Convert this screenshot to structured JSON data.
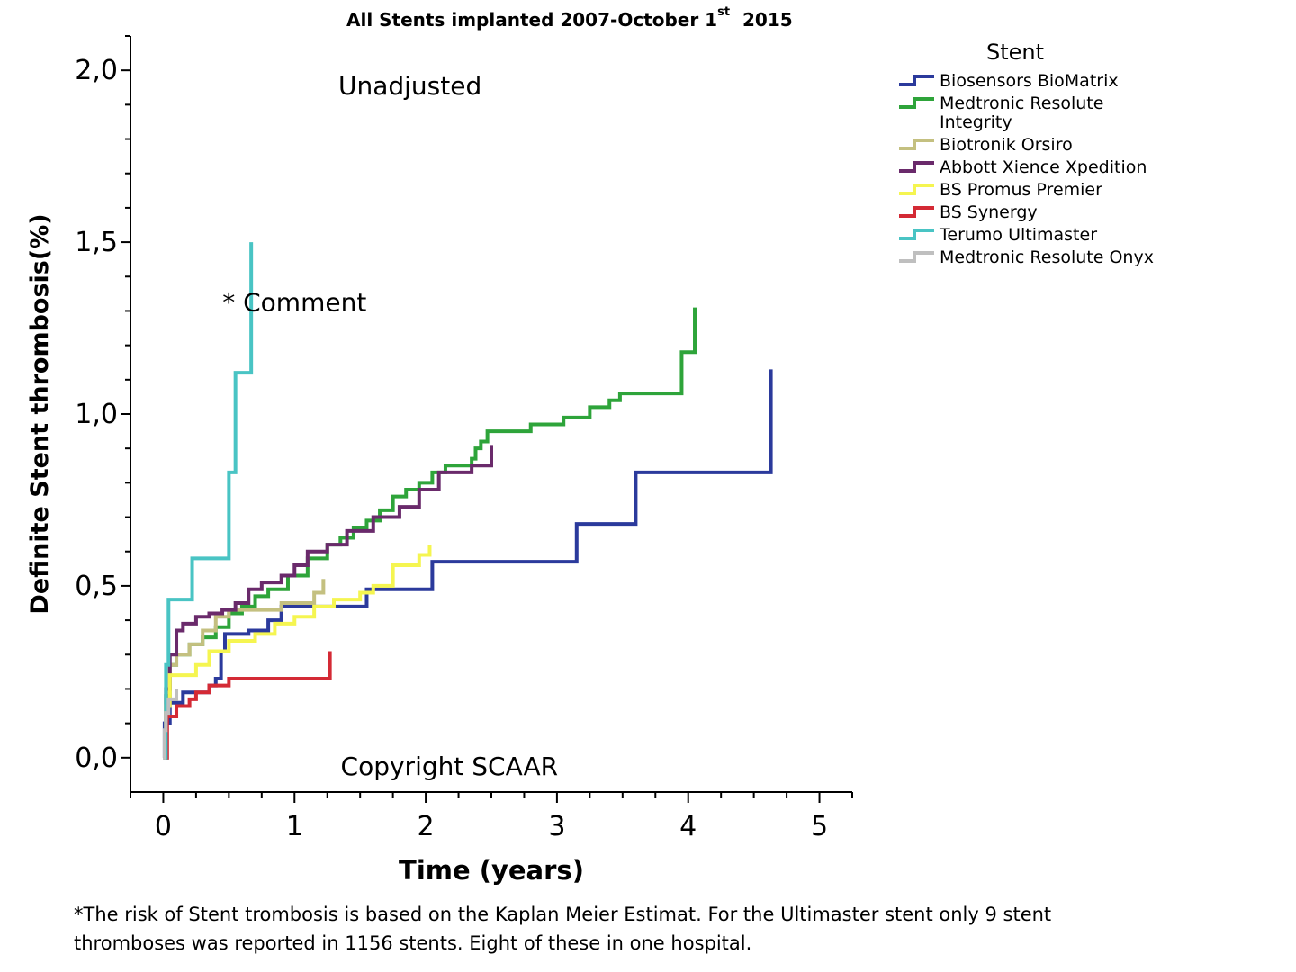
{
  "page": {
    "title_main": "All Stents implanted 2007-October 1",
    "title_sup": "st",
    "title_tail": "2015",
    "footnote_line1": "*The risk of Stent trombosis is based on the Kaplan Meier Estimat. For the Ultimaster stent only 9 stent",
    "footnote_line2": "thromboses was reported in 1156 stents. Eight of these in one hospital."
  },
  "chart_data": {
    "type": "line",
    "step": true,
    "xlabel": "Time (years)",
    "ylabel": "Definite Stent thrombosis(%)",
    "xlim": [
      -0.25,
      5.25
    ],
    "ylim": [
      -0.1,
      2.1
    ],
    "xticks": [
      0,
      1,
      2,
      3,
      4,
      5
    ],
    "yticks": [
      0.0,
      0.5,
      1.0,
      1.5,
      2.0
    ],
    "ytick_labels": [
      "0,0",
      "0,5",
      "1,0",
      "1,5",
      "2,0"
    ],
    "annotations": [
      {
        "text": "Unadjusted",
        "x": 1.88,
        "y": 1.93
      },
      {
        "text": "* Comment",
        "x": 1.0,
        "y": 1.3
      },
      {
        "text": "Copyright SCAAR",
        "x": 2.18,
        "y": -0.05
      }
    ],
    "legend_title": "Stent",
    "legend_position": "right",
    "series": [
      {
        "name": "Biosensors BioMatrix",
        "color": "#2b3a9c",
        "points": [
          [
            0,
            0
          ],
          [
            0.01,
            0.1
          ],
          [
            0.05,
            0.16
          ],
          [
            0.15,
            0.19
          ],
          [
            0.35,
            0.21
          ],
          [
            0.4,
            0.23
          ],
          [
            0.44,
            0.31
          ],
          [
            0.47,
            0.36
          ],
          [
            0.65,
            0.37
          ],
          [
            0.8,
            0.4
          ],
          [
            0.9,
            0.44
          ],
          [
            1.0,
            0.44
          ],
          [
            1.55,
            0.49
          ],
          [
            2.05,
            0.57
          ],
          [
            3.15,
            0.68
          ],
          [
            3.6,
            0.83
          ],
          [
            4.63,
            1.13
          ]
        ]
      },
      {
        "name": "Medtronic Resolute Integrity",
        "color": "#2ea43a",
        "points": [
          [
            0,
            0
          ],
          [
            0.02,
            0.18
          ],
          [
            0.05,
            0.27
          ],
          [
            0.1,
            0.3
          ],
          [
            0.2,
            0.33
          ],
          [
            0.3,
            0.35
          ],
          [
            0.4,
            0.38
          ],
          [
            0.5,
            0.42
          ],
          [
            0.6,
            0.44
          ],
          [
            0.7,
            0.47
          ],
          [
            0.8,
            0.49
          ],
          [
            0.95,
            0.53
          ],
          [
            1.1,
            0.58
          ],
          [
            1.25,
            0.62
          ],
          [
            1.35,
            0.64
          ],
          [
            1.45,
            0.67
          ],
          [
            1.55,
            0.69
          ],
          [
            1.65,
            0.72
          ],
          [
            1.75,
            0.76
          ],
          [
            1.85,
            0.78
          ],
          [
            1.95,
            0.8
          ],
          [
            2.05,
            0.83
          ],
          [
            2.15,
            0.85
          ],
          [
            2.3,
            0.85
          ],
          [
            2.35,
            0.87
          ],
          [
            2.38,
            0.9
          ],
          [
            2.42,
            0.92
          ],
          [
            2.47,
            0.95
          ],
          [
            2.8,
            0.97
          ],
          [
            3.05,
            0.99
          ],
          [
            3.25,
            1.02
          ],
          [
            3.4,
            1.04
          ],
          [
            3.48,
            1.06
          ],
          [
            3.95,
            1.18
          ],
          [
            4.05,
            1.31
          ]
        ]
      },
      {
        "name": "Biotronik Orsiro",
        "color": "#c4c080",
        "points": [
          [
            0,
            0
          ],
          [
            0.02,
            0.17
          ],
          [
            0.05,
            0.27
          ],
          [
            0.1,
            0.3
          ],
          [
            0.2,
            0.33
          ],
          [
            0.3,
            0.37
          ],
          [
            0.4,
            0.41
          ],
          [
            0.5,
            0.43
          ],
          [
            0.9,
            0.45
          ],
          [
            1.15,
            0.48
          ],
          [
            1.22,
            0.52
          ]
        ]
      },
      {
        "name": "Abbott Xience Xpedition",
        "color": "#6a2a6b",
        "points": [
          [
            0,
            0
          ],
          [
            0.02,
            0.2
          ],
          [
            0.05,
            0.3
          ],
          [
            0.1,
            0.37
          ],
          [
            0.15,
            0.39
          ],
          [
            0.25,
            0.41
          ],
          [
            0.35,
            0.42
          ],
          [
            0.45,
            0.43
          ],
          [
            0.55,
            0.45
          ],
          [
            0.65,
            0.49
          ],
          [
            0.75,
            0.51
          ],
          [
            0.9,
            0.53
          ],
          [
            1.0,
            0.56
          ],
          [
            1.1,
            0.6
          ],
          [
            1.25,
            0.62
          ],
          [
            1.4,
            0.66
          ],
          [
            1.6,
            0.7
          ],
          [
            1.8,
            0.73
          ],
          [
            1.95,
            0.78
          ],
          [
            2.1,
            0.83
          ],
          [
            2.35,
            0.85
          ],
          [
            2.5,
            0.91
          ]
        ]
      },
      {
        "name": "BS Promus Premier",
        "color": "#f5f550",
        "points": [
          [
            0,
            0
          ],
          [
            0.02,
            0.15
          ],
          [
            0.05,
            0.24
          ],
          [
            0.25,
            0.27
          ],
          [
            0.35,
            0.31
          ],
          [
            0.5,
            0.34
          ],
          [
            0.7,
            0.36
          ],
          [
            0.85,
            0.39
          ],
          [
            1.0,
            0.41
          ],
          [
            1.15,
            0.44
          ],
          [
            1.3,
            0.46
          ],
          [
            1.5,
            0.48
          ],
          [
            1.6,
            0.5
          ],
          [
            1.75,
            0.56
          ],
          [
            1.95,
            0.59
          ],
          [
            2.03,
            0.62
          ]
        ]
      },
      {
        "name": "BS Synergy",
        "color": "#d42a35",
        "points": [
          [
            0,
            0
          ],
          [
            0.03,
            0.12
          ],
          [
            0.1,
            0.15
          ],
          [
            0.2,
            0.17
          ],
          [
            0.25,
            0.19
          ],
          [
            0.35,
            0.21
          ],
          [
            0.5,
            0.23
          ],
          [
            1.27,
            0.31
          ]
        ]
      },
      {
        "name": "Terumo Ultimaster",
        "color": "#49c4c4",
        "points": [
          [
            0,
            0
          ],
          [
            0.02,
            0.27
          ],
          [
            0.04,
            0.46
          ],
          [
            0.22,
            0.58
          ],
          [
            0.5,
            0.83
          ],
          [
            0.55,
            1.12
          ],
          [
            0.67,
            1.5
          ]
        ]
      },
      {
        "name": "Medtronic Resolute Onyx",
        "color": "#bfbfbf",
        "points": [
          [
            0,
            0
          ],
          [
            0.01,
            0.08
          ],
          [
            0.02,
            0.13
          ],
          [
            0.04,
            0.17
          ],
          [
            0.1,
            0.2
          ]
        ]
      }
    ]
  }
}
